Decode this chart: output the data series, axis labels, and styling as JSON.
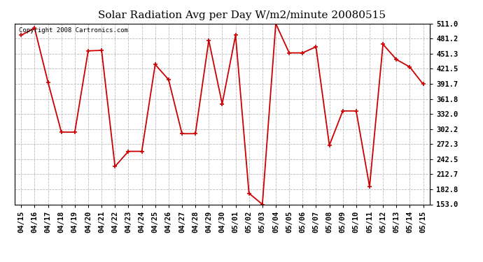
{
  "title": "Solar Radiation Avg per Day W/m2/minute 20080515",
  "copyright": "Copyright 2008 Cartronics.com",
  "dates": [
    "04/15",
    "04/16",
    "04/17",
    "04/18",
    "04/19",
    "04/20",
    "04/21",
    "04/22",
    "04/23",
    "04/24",
    "04/25",
    "04/26",
    "04/27",
    "04/28",
    "04/29",
    "04/30",
    "05/01",
    "05/02",
    "05/03",
    "05/04",
    "05/05",
    "05/06",
    "05/07",
    "05/08",
    "05/09",
    "05/10",
    "05/11",
    "05/12",
    "05/13",
    "05/14",
    "05/15"
  ],
  "values": [
    488,
    502,
    395,
    296,
    296,
    457,
    458,
    228,
    258,
    258,
    430,
    400,
    293,
    293,
    478,
    352,
    488,
    175,
    153,
    511,
    453,
    453,
    465,
    270,
    338,
    338,
    188,
    470,
    440,
    425,
    391
  ],
  "y_ticks": [
    153.0,
    182.8,
    212.7,
    242.5,
    272.3,
    302.2,
    332.0,
    361.8,
    391.7,
    421.5,
    451.3,
    481.2,
    511.0
  ],
  "line_color": "#cc0000",
  "marker": "+",
  "bg_color": "#ffffff",
  "plot_bg_color": "#ffffff",
  "grid_color": "#bbbbbb",
  "title_fontsize": 11,
  "tick_fontsize": 7.5,
  "copyright_fontsize": 6.5
}
